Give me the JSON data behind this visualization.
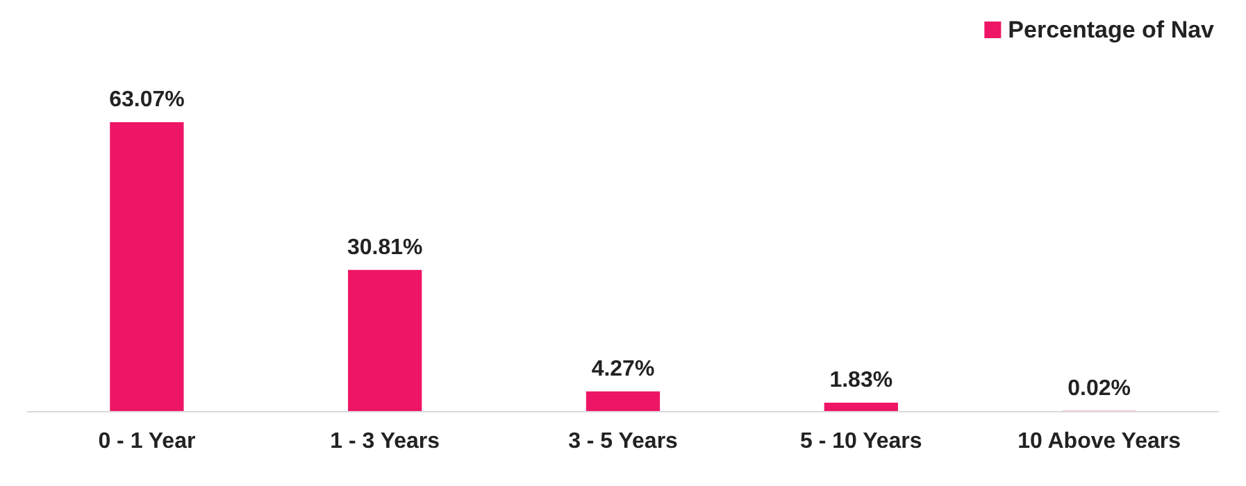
{
  "chart_data": {
    "type": "bar",
    "categories": [
      "0 - 1 Year",
      "1 - 3 Years",
      "3 - 5 Years",
      "5 - 10 Years",
      "10 Above Years"
    ],
    "series": [
      {
        "name": "Percentage of Nav",
        "color": "#ee1566",
        "values": [
          63.07,
          30.81,
          4.27,
          1.83,
          0.02
        ],
        "value_labels": [
          "63.07%",
          "30.81%",
          "4.27%",
          "1.83%",
          "0.02%"
        ]
      }
    ],
    "legend": "top right",
    "grid": false
  }
}
